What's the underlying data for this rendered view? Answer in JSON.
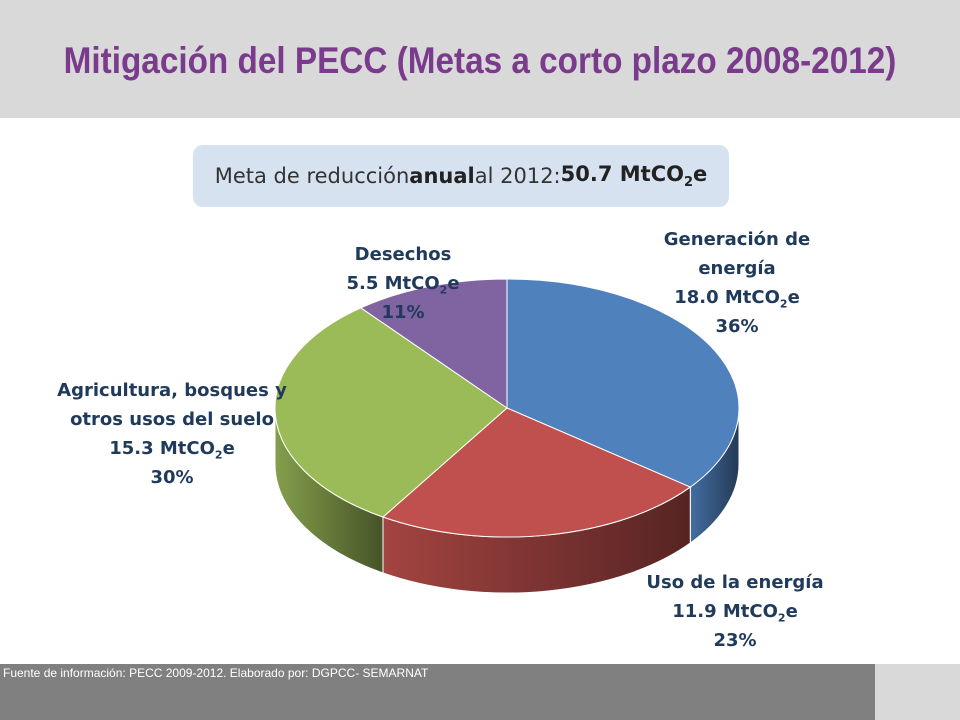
{
  "header": {
    "title": "Mitigación del PECC (Metas a corto plazo 2008-2012)"
  },
  "goal_box": {
    "prefix": "Meta de reducción ",
    "emphasis": "anual",
    "middle": " al 2012: ",
    "value": "50.7 MtCO",
    "value_sub": "2",
    "value_suffix": "e"
  },
  "chart_data": {
    "type": "pie",
    "title": "",
    "unit_main": "MtCO",
    "unit_sub": "2",
    "unit_suffix": "e",
    "slices": [
      {
        "name_lines": [
          "Generación de",
          "energía"
        ],
        "value": 18.0,
        "value_text": "18.0",
        "percent": 36,
        "percent_text": "36%",
        "color": "#4f81bd"
      },
      {
        "name_lines": [
          "Uso de la energía"
        ],
        "value": 11.9,
        "value_text": "11.9",
        "percent": 23,
        "percent_text": "23%",
        "color": "#c0504d"
      },
      {
        "name_lines": [
          "Agricultura, bosques y",
          "otros usos del suelo"
        ],
        "value": 15.3,
        "value_text": "15.3",
        "percent": 30,
        "percent_text": "30%",
        "color": "#9bbb59"
      },
      {
        "name_lines": [
          "Desechos"
        ],
        "value": 5.5,
        "value_text": "5.5",
        "percent": 11,
        "percent_text": "11%",
        "color": "#8064a2"
      }
    ],
    "legend": "none",
    "style": "3d-exploded-labels"
  },
  "footer": {
    "source": "Fuente de información: PECC 2009-2012. Elaborado por: DGPCC- SEMARNAT"
  }
}
